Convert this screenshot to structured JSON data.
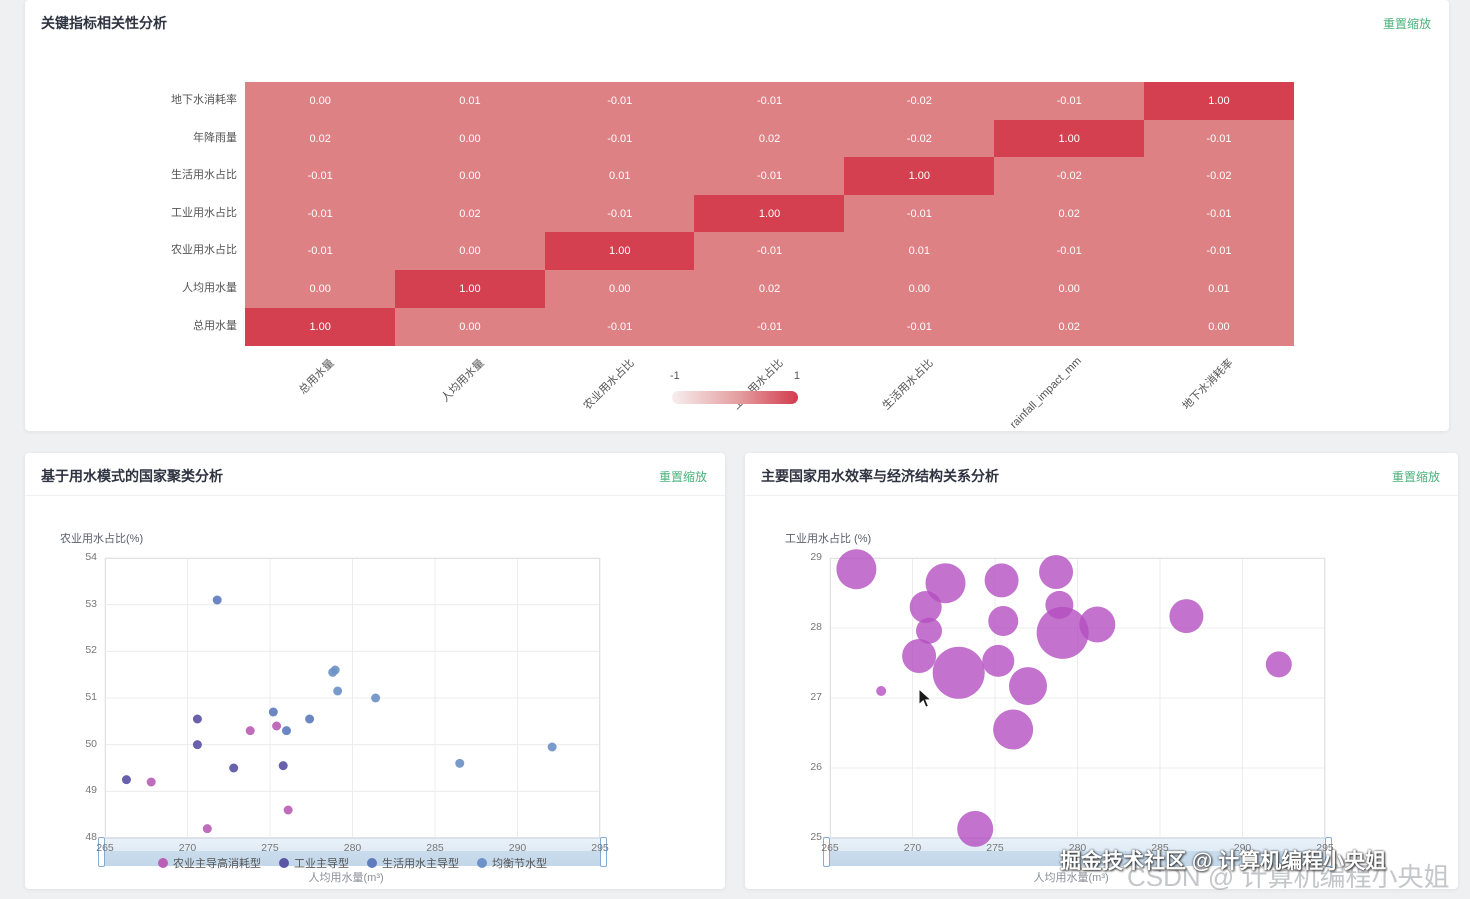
{
  "colors": {
    "accent_green": "#4cb17c",
    "page_bg": "#eef0f2"
  },
  "watermarks": {
    "juejin": "掘金技术社区 @ 计算机编程小央姐",
    "csdn": "CSDN @ 计算机编程小央姐"
  },
  "panels": [
    {
      "title": "关键指标相关性分析",
      "reset_label": "重置缩放"
    },
    {
      "title": "基于用水模式的国家聚类分析",
      "reset_label": "重置缩放"
    },
    {
      "title": "主要国家用水效率与经济结构关系分析",
      "reset_label": "重置缩放"
    }
  ],
  "chart_data": [
    {
      "type": "heatmap",
      "title": "关键指标相关性分析",
      "rows": [
        "地下水消耗率",
        "年降雨量",
        "生活用水占比",
        "工业用水占比",
        "农业用水占比",
        "人均用水量",
        "总用水量"
      ],
      "cols": [
        "总用水量",
        "人均用水量",
        "农业用水占比",
        "工业用水占比",
        "生活用水占比",
        "rainfall_impact_mm",
        "地下水消耗率"
      ],
      "values": [
        [
          0.0,
          0.01,
          -0.01,
          -0.01,
          -0.02,
          -0.01,
          1.0
        ],
        [
          0.02,
          0.0,
          -0.01,
          0.02,
          -0.02,
          1.0,
          -0.01
        ],
        [
          -0.01,
          0.0,
          0.01,
          -0.01,
          1.0,
          -0.02,
          -0.02
        ],
        [
          -0.01,
          0.02,
          -0.01,
          1.0,
          -0.01,
          0.02,
          -0.01
        ],
        [
          -0.01,
          0.0,
          1.0,
          -0.01,
          0.01,
          -0.01,
          -0.01
        ],
        [
          0.0,
          1.0,
          0.0,
          0.02,
          0.0,
          0.0,
          0.01
        ],
        [
          1.0,
          0.0,
          -0.01,
          -0.01,
          -0.01,
          0.02,
          0.0
        ]
      ],
      "colorbar": {
        "min_label": "-1",
        "max_label": "1"
      },
      "colors": {
        "base": "#de8184",
        "diagonal": "#d4404f"
      }
    },
    {
      "type": "scatter",
      "title": "基于用水模式的国家聚类分析",
      "xlabel": "人均用水量(m³)",
      "ylabel": "农业用水占比(%)",
      "xlim": [
        265,
        295
      ],
      "ylim": [
        48,
        54
      ],
      "xticks": [
        265,
        270,
        275,
        280,
        285,
        290,
        295
      ],
      "yticks": [
        48,
        49,
        50,
        51,
        52,
        53,
        54
      ],
      "legend_position": "bottom",
      "series": [
        {
          "name": "农业主导高消耗型",
          "color": "#bb5fb6",
          "points": [
            [
              267.8,
              49.2
            ],
            [
              271.2,
              48.2
            ],
            [
              273.8,
              50.3
            ],
            [
              275.4,
              50.4
            ],
            [
              276.1,
              48.6
            ]
          ]
        },
        {
          "name": "工业主导型",
          "color": "#5b55a6",
          "points": [
            [
              266.3,
              49.25
            ],
            [
              270.6,
              50.0
            ],
            [
              270.6,
              50.55
            ],
            [
              272.8,
              49.5
            ],
            [
              275.8,
              49.55
            ]
          ]
        },
        {
          "name": "生活用水主导型",
          "color": "#5f7cbe",
          "points": [
            [
              271.8,
              53.1
            ],
            [
              275.2,
              50.7
            ],
            [
              276.0,
              50.3
            ],
            [
              277.4,
              50.55
            ]
          ]
        },
        {
          "name": "均衡节水型",
          "color": "#6e92c8",
          "points": [
            [
              278.8,
              51.55
            ],
            [
              278.95,
              51.6
            ],
            [
              279.1,
              51.15
            ],
            [
              281.4,
              51.0
            ],
            [
              286.5,
              49.6
            ],
            [
              292.1,
              49.95
            ]
          ]
        }
      ]
    },
    {
      "type": "scatter",
      "title": "主要国家用水效率与经济结构关系分析",
      "xlabel": "人均用水量(m³)",
      "ylabel": "工业用水占比 (%)",
      "xlim": [
        265,
        295
      ],
      "ylim": [
        25,
        29
      ],
      "xticks": [
        265,
        270,
        275,
        280,
        285,
        290,
        295
      ],
      "yticks": [
        25,
        26,
        27,
        28,
        29
      ],
      "bubble_color": "#b44fc0",
      "bubbles": [
        [
          266.6,
          28.84,
          20
        ],
        [
          268.1,
          27.1,
          5
        ],
        [
          270.4,
          27.6,
          17
        ],
        [
          270.8,
          28.3,
          16
        ],
        [
          271.0,
          27.96,
          13
        ],
        [
          272.0,
          28.64,
          20
        ],
        [
          272.8,
          27.36,
          26
        ],
        [
          273.8,
          25.13,
          18
        ],
        [
          275.4,
          28.68,
          17
        ],
        [
          275.5,
          28.1,
          15
        ],
        [
          275.2,
          27.53,
          16
        ],
        [
          276.1,
          26.55,
          20
        ],
        [
          277.0,
          27.17,
          19
        ],
        [
          278.7,
          28.8,
          17
        ],
        [
          278.9,
          28.33,
          14
        ],
        [
          279.1,
          27.93,
          26
        ],
        [
          281.2,
          28.05,
          18
        ],
        [
          286.6,
          28.17,
          17
        ],
        [
          292.2,
          27.48,
          13
        ]
      ]
    }
  ]
}
